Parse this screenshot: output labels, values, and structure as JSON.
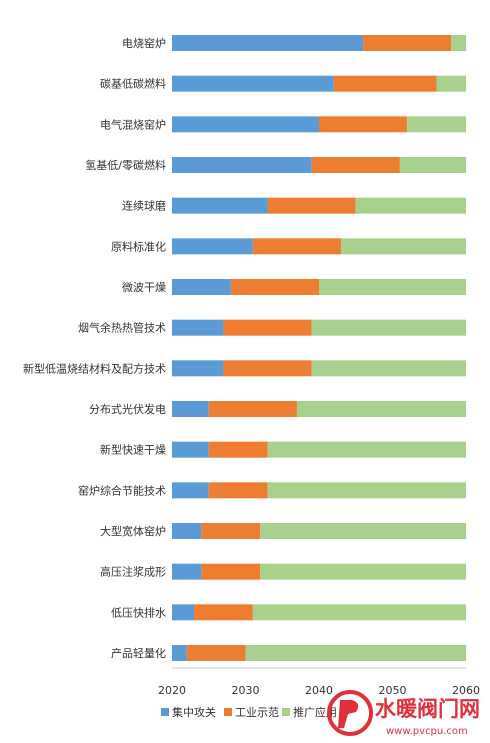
{
  "chart_data": {
    "type": "bar",
    "orientation": "horizontal",
    "stacked": true,
    "categories": [
      "电烧窑炉",
      "碳基低碳燃料",
      "电气混烧窑炉",
      "氢基低/零碳燃料",
      "连续球磨",
      "原料标准化",
      "微波干燥",
      "烟气余热热管技术",
      "新型低温烧结材料及配方技术",
      "分布式光伏发电",
      "新型快速干燥",
      "窑炉综合节能技术",
      "大型宽体窑炉",
      "高压注浆成形",
      "低压快排水",
      "产品轻量化"
    ],
    "series": [
      {
        "name": "集中攻关",
        "color": "#5B9BD5",
        "start": [
          2020,
          2020,
          2020,
          2020,
          2020,
          2020,
          2020,
          2020,
          2020,
          2020,
          2020,
          2020,
          2020,
          2020,
          2020,
          2020
        ],
        "end": [
          2046,
          2042,
          2040,
          2039,
          2033,
          2031,
          2028,
          2027,
          2027,
          2025,
          2025,
          2025,
          2024,
          2024,
          2023,
          2022
        ]
      },
      {
        "name": "工业示范",
        "color": "#ED7D31",
        "start": [
          2046,
          2042,
          2040,
          2039,
          2033,
          2031,
          2028,
          2027,
          2027,
          2025,
          2025,
          2025,
          2024,
          2024,
          2023,
          2022
        ],
        "end": [
          2058,
          2056,
          2052,
          2051,
          2045,
          2043,
          2040,
          2039,
          2039,
          2037,
          2033,
          2033,
          2032,
          2032,
          2031,
          2030
        ]
      },
      {
        "name": "推广应用",
        "color": "#A9D18E",
        "start": [
          2058,
          2056,
          2052,
          2051,
          2045,
          2043,
          2040,
          2039,
          2039,
          2037,
          2033,
          2033,
          2032,
          2032,
          2031,
          2030
        ],
        "end": [
          2060,
          2060,
          2060,
          2060,
          2060,
          2060,
          2060,
          2060,
          2060,
          2060,
          2060,
          2060,
          2060,
          2060,
          2060,
          2060
        ]
      }
    ],
    "xlim": [
      2020,
      2060
    ],
    "xticks": [
      "2020",
      "2030",
      "2040",
      "2050",
      "2060"
    ],
    "grid": false,
    "legend_position": "bottom"
  },
  "watermark": {
    "text": "水暖阀门网",
    "url": "www.pvcpu.com",
    "colors": {
      "primary": "#E0303C",
      "logo": "#E0303C"
    }
  }
}
